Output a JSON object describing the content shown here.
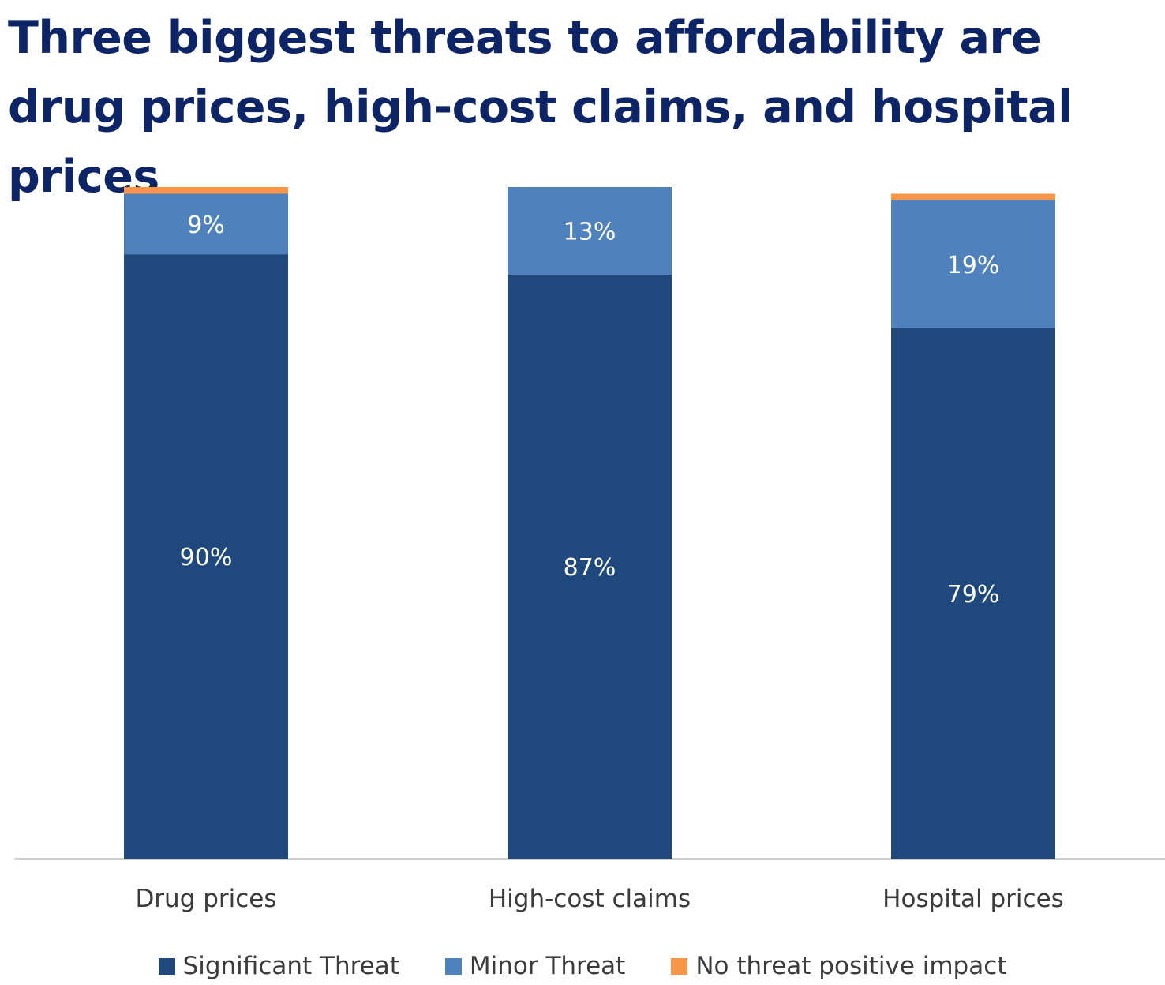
{
  "title": "Three biggest threats to affordability are drug prices, high-cost claims, and hospital prices",
  "chart_data": {
    "type": "bar",
    "stacked": true,
    "categories": [
      "Drug prices",
      "High-cost claims",
      "Hospital prices"
    ],
    "series": [
      {
        "name": "Significant Threat",
        "values": [
          90,
          87,
          79
        ],
        "labels": [
          "90%",
          "87%",
          "79%"
        ],
        "color": "#1f497d"
      },
      {
        "name": "Minor Threat",
        "values": [
          9,
          13,
          19
        ],
        "labels": [
          "9%",
          "13%",
          "19%"
        ],
        "color": "#4f81bd"
      },
      {
        "name": "No threat positive impact",
        "values": [
          1,
          0,
          1
        ],
        "labels": [
          "",
          "",
          ""
        ],
        "color": "#f79646"
      }
    ],
    "ylim": [
      0,
      100
    ],
    "grid": false,
    "legend_position": "bottom"
  }
}
